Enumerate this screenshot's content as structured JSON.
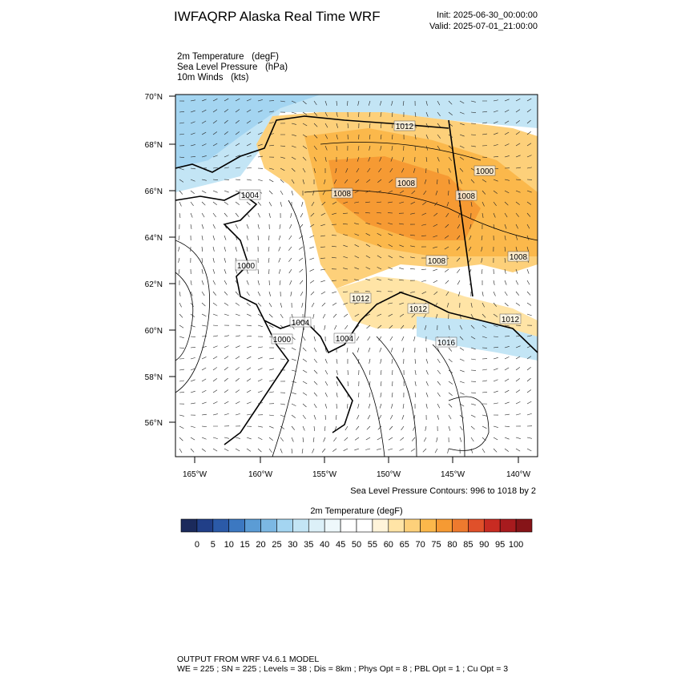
{
  "header": {
    "title": "IWFAQRP Alaska Real Time WRF",
    "init": "Init: 2025-06-30_00:00:00",
    "valid": "Valid: 2025-07-01_21:00:00"
  },
  "fields": [
    "2m Temperature   (degF)",
    "Sea Level Pressure   (hPa)",
    "10m Winds   (kts)"
  ],
  "map": {
    "lat_labels": [
      "70°N",
      "68°N",
      "66°N",
      "64°N",
      "62°N",
      "60°N",
      "58°N",
      "56°N"
    ],
    "lon_labels": [
      "165°W",
      "160°W",
      "155°W",
      "150°W",
      "145°W",
      "140°W"
    ],
    "contour_labels": [
      "1012",
      "1000",
      "1008",
      "1008",
      "1004",
      "1008",
      "1008",
      "1008",
      "1000",
      "1012",
      "1012",
      "1004",
      "1012",
      "1000",
      "1004",
      "1016"
    ]
  },
  "contour_note": "Sea Level Pressure Contours: 996 to 1018 by 2",
  "colorbar": {
    "title": "2m Temperature  (degF)",
    "labels": [
      "0",
      "5",
      "10",
      "15",
      "20",
      "25",
      "30",
      "35",
      "40",
      "45",
      "50",
      "55",
      "60",
      "65",
      "70",
      "75",
      "80",
      "85",
      "90",
      "95",
      "100"
    ],
    "colors": [
      "#1b2a5c",
      "#213f88",
      "#2b5aa8",
      "#3c78c1",
      "#5b9cd5",
      "#7cb8e3",
      "#a4d5f1",
      "#c3e5f5",
      "#dcf0f8",
      "#eef8fb",
      "#ffffff",
      "#ffffff",
      "#fff4da",
      "#ffe4a6",
      "#fdd07a",
      "#fbb84b",
      "#f69a33",
      "#ee7a2e",
      "#e0502a",
      "#c82b22",
      "#a81b1e",
      "#861418"
    ]
  },
  "footer": {
    "line1": "OUTPUT FROM WRF V4.6.1 MODEL",
    "line2": "WE = 225 ; SN = 225 ; Levels = 38 ; Dis = 8km ; Phys Opt = 8 ; PBL Opt = 1 ; Cu Opt = 3"
  }
}
